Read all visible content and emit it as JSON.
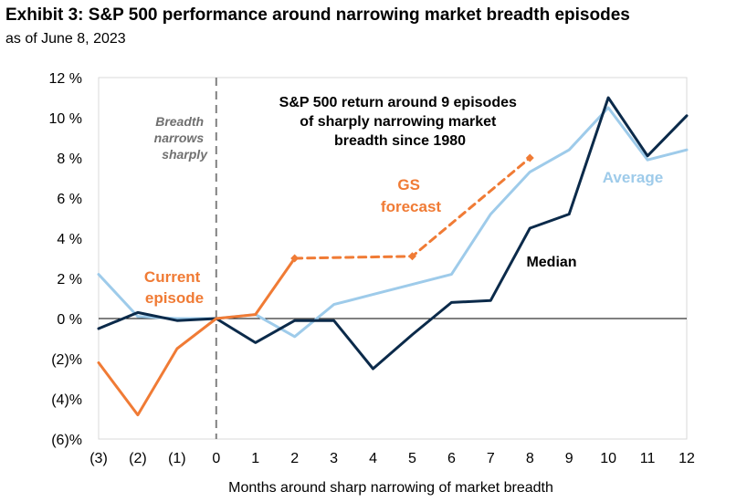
{
  "header": {
    "title": "Exhibit 3: S&P 500 performance around narrowing market breadth episodes",
    "subtitle": "as of June 8, 2023"
  },
  "colors": {
    "median": "#0b2a4a",
    "average": "#9ecbea",
    "current": "#f07b35",
    "forecast": "#f07b35",
    "divider": "#808080"
  },
  "chart_data": {
    "type": "line",
    "title": "Exhibit 3: S&P 500 performance around narrowing market breadth episodes",
    "subtitle": "as of June 8, 2023",
    "xlabel": "Months around sharp narrowing of market breadth",
    "ylabel": "",
    "x": [
      -3,
      -2,
      -1,
      0,
      1,
      2,
      3,
      4,
      5,
      6,
      7,
      8,
      9,
      10,
      11,
      12
    ],
    "x_tick_labels": [
      "(3)",
      "(2)",
      "(1)",
      "0",
      "1",
      "2",
      "3",
      "4",
      "5",
      "6",
      "7",
      "8",
      "9",
      "10",
      "11",
      "12"
    ],
    "ylim": [
      -6,
      12
    ],
    "y_ticks": [
      12,
      10,
      8,
      6,
      4,
      2,
      0,
      -2,
      -4,
      -6
    ],
    "y_tick_labels": [
      "12 %",
      "10 %",
      "8 %",
      "6 %",
      "4 %",
      "2 %",
      "0 %",
      "(2)%",
      "(4)%",
      "(6)%"
    ],
    "grid": false,
    "series": [
      {
        "key": "median",
        "values": [
          -0.5,
          0.3,
          -0.1,
          0.0,
          -1.2,
          -0.1,
          -0.1,
          -2.5,
          -0.8,
          0.8,
          0.9,
          4.5,
          5.2,
          11.0,
          8.1,
          10.1
        ]
      },
      {
        "key": "average",
        "values": [
          2.2,
          0.1,
          0.0,
          0.0,
          0.2,
          -0.9,
          0.7,
          1.2,
          1.7,
          2.2,
          5.2,
          7.3,
          8.4,
          10.5,
          7.9,
          8.4
        ]
      },
      {
        "key": "current",
        "x": [
          -3,
          -2,
          -1,
          0,
          1,
          2
        ],
        "values": [
          -2.2,
          -4.8,
          -1.5,
          0.0,
          0.2,
          3.0
        ]
      },
      {
        "key": "forecast",
        "dashed": true,
        "x": [
          2,
          5,
          8
        ],
        "values": [
          3.0,
          3.1,
          8.0
        ]
      }
    ],
    "annotations": {
      "divider_label": [
        "Breadth",
        "narrows",
        "sharply"
      ],
      "headline": [
        "S&P 500 return around 9 episodes",
        "of sharply narrowing market",
        "breadth since 1980"
      ],
      "gs_forecast": [
        "GS",
        "forecast"
      ],
      "current_episode": [
        "Current",
        "episode"
      ],
      "average": "Average",
      "median": "Median"
    }
  }
}
